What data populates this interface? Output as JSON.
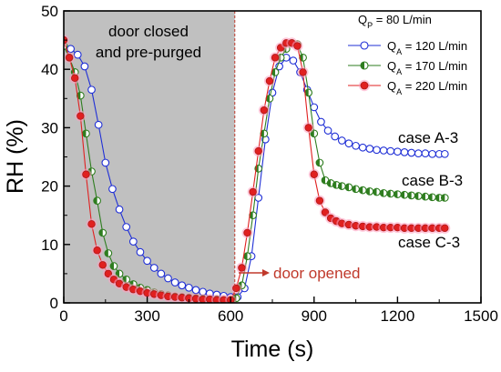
{
  "chart_data": {
    "type": "scatter",
    "xlabel": "Time (s)",
    "ylabel": "RH (%)",
    "xlim": [
      0,
      1500
    ],
    "ylim": [
      0,
      50
    ],
    "x_ticks": [
      "0",
      "300",
      "600",
      "900",
      "1200",
      "1500"
    ],
    "y_ticks": [
      "0",
      "10",
      "20",
      "30",
      "40",
      "50"
    ],
    "grid": false,
    "legend_position": "top-right",
    "legend_header": {
      "main": "Q",
      "sub": "P",
      "rest": " = 80 L/min"
    },
    "shaded_region": {
      "x_start": 0,
      "x_end": 615,
      "color": "#c0c0c0"
    },
    "divider_x": 615,
    "annotations": {
      "purge_line1": "door closed",
      "purge_line2": "and pre-purged",
      "door_opened": "door opened",
      "case_a": "case A-3",
      "case_b": "case B-3",
      "case_c": "case C-3"
    },
    "series": [
      {
        "name_main": "Q",
        "name_sub": "A",
        "name_rest": " = 120 L/min",
        "marker": "open-circle",
        "color": "#1f2fd6",
        "x": [
          0,
          25,
          50,
          75,
          100,
          125,
          150,
          175,
          200,
          225,
          250,
          275,
          300,
          325,
          350,
          375,
          400,
          425,
          450,
          475,
          500,
          525,
          550,
          575,
          600,
          625,
          650,
          675,
          700,
          725,
          750,
          775,
          800,
          825,
          850,
          875,
          900,
          925,
          950,
          975,
          1000,
          1025,
          1050,
          1075,
          1100,
          1125,
          1150,
          1175,
          1200,
          1225,
          1250,
          1275,
          1300,
          1325,
          1350,
          1370
        ],
        "y": [
          44,
          43.5,
          42.5,
          40.5,
          36.5,
          30.5,
          24,
          19.5,
          16,
          13,
          10.5,
          8.7,
          7.2,
          6,
          5,
          4.2,
          3.5,
          3,
          2.6,
          2.2,
          1.9,
          1.6,
          1.4,
          1.2,
          1,
          1,
          2.5,
          8,
          18,
          28,
          36,
          40.5,
          42,
          41.5,
          39.5,
          36.5,
          33.5,
          31,
          29.5,
          28.5,
          27.8,
          27.3,
          26.9,
          26.6,
          26.4,
          26.2,
          26.1,
          26,
          25.9,
          25.8,
          25.7,
          25.6,
          25.6,
          25.5,
          25.5,
          25.5
        ]
      },
      {
        "name_main": "Q",
        "name_sub": "A",
        "name_rest": " = 170 L/min",
        "marker": "half-circle",
        "color": "#2e7d1f",
        "x": [
          0,
          20,
          40,
          60,
          80,
          100,
          120,
          140,
          160,
          180,
          200,
          225,
          250,
          275,
          300,
          325,
          350,
          375,
          400,
          425,
          450,
          475,
          500,
          525,
          550,
          575,
          600,
          620,
          640,
          660,
          680,
          700,
          720,
          740,
          760,
          780,
          800,
          820,
          840,
          860,
          880,
          900,
          920,
          940,
          960,
          980,
          1000,
          1025,
          1050,
          1075,
          1100,
          1125,
          1150,
          1175,
          1200,
          1225,
          1250,
          1275,
          1300,
          1325,
          1350,
          1370
        ],
        "y": [
          44,
          42,
          39.5,
          35.5,
          29,
          22.5,
          17.5,
          12,
          8.5,
          6.3,
          5,
          4,
          3.2,
          2.6,
          2.2,
          1.8,
          1.5,
          1.3,
          1.1,
          1,
          0.9,
          0.8,
          0.7,
          0.6,
          0.6,
          0.5,
          0.5,
          0.8,
          3,
          8,
          15,
          23,
          29,
          35,
          39.5,
          42,
          43.5,
          44.5,
          44.3,
          42,
          36,
          29,
          24,
          21,
          20.5,
          20.2,
          20,
          19.8,
          19.5,
          19.3,
          19.1,
          19,
          18.8,
          18.7,
          18.6,
          18.5,
          18.4,
          18.3,
          18.2,
          18.1,
          18,
          18
        ]
      },
      {
        "name_main": "Q",
        "name_sub": "A",
        "name_rest": " = 220 L/min",
        "marker": "filled-circle",
        "color": "#e02020",
        "x": [
          0,
          20,
          40,
          60,
          80,
          100,
          120,
          140,
          160,
          180,
          200,
          225,
          250,
          275,
          300,
          325,
          350,
          375,
          400,
          425,
          450,
          475,
          500,
          525,
          550,
          575,
          600,
          620,
          640,
          660,
          680,
          700,
          720,
          740,
          760,
          780,
          800,
          820,
          840,
          860,
          880,
          900,
          920,
          940,
          960,
          980,
          1000,
          1025,
          1050,
          1075,
          1100,
          1125,
          1150,
          1175,
          1200,
          1225,
          1250,
          1275,
          1300,
          1325,
          1350,
          1370
        ],
        "y": [
          45,
          42,
          38.5,
          32,
          22,
          13.5,
          9,
          6.5,
          5,
          4,
          3.3,
          2.7,
          2.3,
          2,
          1.7,
          1.5,
          1.3,
          1.1,
          1,
          0.9,
          0.8,
          0.7,
          0.6,
          0.6,
          0.5,
          0.5,
          0.5,
          2.5,
          6,
          12,
          19,
          26,
          33,
          38,
          42,
          43.7,
          44.5,
          44.5,
          44,
          39.5,
          30,
          22,
          17.5,
          15.5,
          14.5,
          14,
          13.6,
          13.4,
          13.2,
          13.1,
          13,
          13,
          12.9,
          12.9,
          12.9,
          12.8,
          12.8,
          12.8,
          12.8,
          12.8,
          12.8,
          12.8
        ]
      }
    ]
  }
}
